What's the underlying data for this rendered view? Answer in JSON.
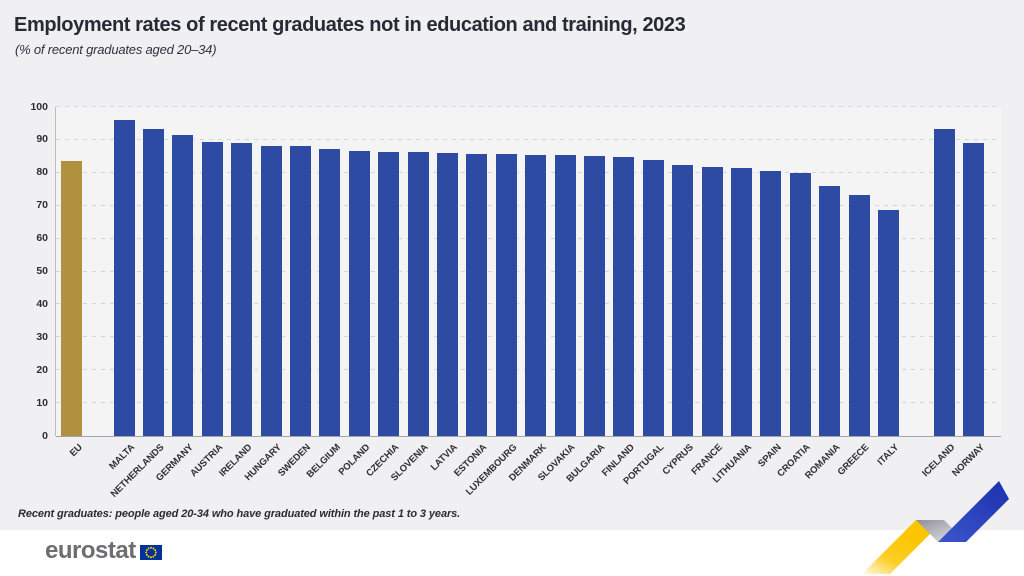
{
  "page": {
    "title": "Employment rates of recent graduates not in education and training, 2023",
    "subtitle": "(% of recent graduates aged 20–34)",
    "footnote": "Recent graduates: people aged 20-34 who have graduated within the past 1 to 3 years.",
    "logo_text": "eurostat"
  },
  "colors": {
    "eu_bar": "#b09140",
    "member_bar": "#2e4ba3",
    "background": "#f0f0f2",
    "plot_background": "#f4f4f5",
    "gridline": "#d5d5d9",
    "axis_line": "#a3a3aa",
    "title_text": "#262a36",
    "logo_gray": "#6d6d72",
    "flag_blue": "#003399",
    "flag_star_yellow": "#ffcc00",
    "brand_yellow": "#fdc500",
    "brand_gray": "#9b9ba3",
    "brand_blue": "#2138b8"
  },
  "chart_data": {
    "type": "bar",
    "title": "Employment rates of recent graduates not in education and training, 2023",
    "subtitle": "(% of recent graduates aged 20–34)",
    "xlabel": "",
    "ylabel": "% of recent graduates aged 20–34",
    "ylim": [
      0,
      100
    ],
    "yticks": [
      0,
      10,
      20,
      30,
      40,
      50,
      60,
      70,
      80,
      90,
      100
    ],
    "grid": "horizontal-dashed",
    "legend": "none",
    "highlight_category": "EU",
    "separators_after": [
      "EU",
      "ITALY"
    ],
    "categories": [
      "EU",
      "MALTA",
      "NETHERLANDS",
      "GERMANY",
      "AUSTRIA",
      "IRELAND",
      "HUNGARY",
      "SWEDEN",
      "BELGIUM",
      "POLAND",
      "CZECHIA",
      "SLOVENIA",
      "LATVIA",
      "ESTONIA",
      "LUXEMBOURG",
      "DENMARK",
      "SLOVAKIA",
      "BULGARIA",
      "FINLAND",
      "PORTUGAL",
      "CYPRUS",
      "FRANCE",
      "LITHUANIA",
      "SPAIN",
      "CROATIA",
      "ROMANIA",
      "GREECE",
      "ITALY",
      "ICELAND",
      "NORWAY"
    ],
    "values": [
      83.5,
      96.0,
      93.4,
      91.5,
      89.3,
      89.0,
      88.3,
      88.1,
      87.1,
      86.6,
      86.4,
      86.2,
      86.0,
      85.8,
      85.7,
      85.5,
      85.3,
      85.0,
      84.7,
      83.8,
      82.3,
      81.9,
      81.6,
      80.4,
      79.9,
      76.0,
      73.4,
      68.8,
      93.2,
      89.0
    ],
    "groups": [
      "eu-aggregate",
      "eu-member",
      "eu-member",
      "eu-member",
      "eu-member",
      "eu-member",
      "eu-member",
      "eu-member",
      "eu-member",
      "eu-member",
      "eu-member",
      "eu-member",
      "eu-member",
      "eu-member",
      "eu-member",
      "eu-member",
      "eu-member",
      "eu-member",
      "eu-member",
      "eu-member",
      "eu-member",
      "eu-member",
      "eu-member",
      "eu-member",
      "eu-member",
      "eu-member",
      "eu-member",
      "eu-member",
      "efta",
      "efta"
    ]
  }
}
